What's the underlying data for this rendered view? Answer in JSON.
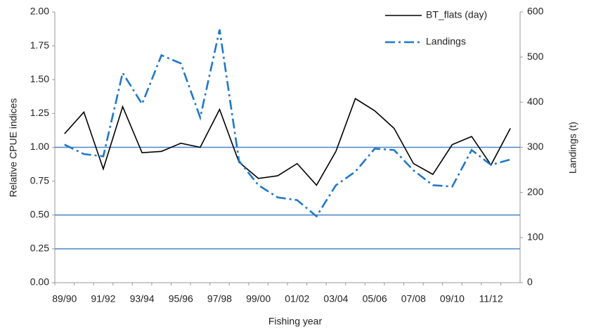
{
  "chart_data": {
    "type": "line",
    "xlabel": "Fishing year",
    "ylabel": "Relative CPUE indices",
    "y2label": "Landings (t)",
    "categories": [
      "89/90",
      null,
      "91/92",
      null,
      "93/94",
      null,
      "95/96",
      null,
      "97/98",
      null,
      "99/00",
      null,
      "01/02",
      null,
      "03/04",
      null,
      "05/06",
      null,
      "07/08",
      null,
      "09/10",
      null,
      "11/12",
      null
    ],
    "series": [
      {
        "name": "BT_flats (day)",
        "color": "#000000",
        "dash": "solid",
        "values": [
          1.1,
          1.26,
          0.84,
          1.3,
          0.96,
          0.97,
          1.03,
          1.0,
          1.28,
          0.89,
          0.77,
          0.79,
          0.88,
          0.72,
          0.97,
          1.36,
          1.27,
          1.14,
          0.88,
          0.8,
          1.02,
          1.08,
          0.87,
          1.14
        ]
      },
      {
        "name": "Landings",
        "color": "#1f78c8",
        "dash": "dashdot",
        "axis": "y2",
        "values": [
          306,
          285,
          280,
          465,
          396,
          504,
          486,
          366,
          561,
          270,
          216,
          189,
          183,
          147,
          216,
          246,
          297,
          294,
          249,
          216,
          213,
          294,
          261,
          273
        ]
      }
    ],
    "ylim": [
      0,
      2
    ],
    "yticks": [
      {
        "value": 0,
        "label": "0.00"
      },
      {
        "value": 0.25,
        "label": "0.25"
      },
      {
        "value": 0.5,
        "label": "0.50"
      },
      {
        "value": 0.75,
        "label": "0.75"
      },
      {
        "value": 1,
        "label": "1.00"
      },
      {
        "value": 1.25,
        "label": "1.25"
      },
      {
        "value": 1.5,
        "label": "1.50"
      },
      {
        "value": 1.75,
        "label": "1.75"
      },
      {
        "value": 2,
        "label": "2.00"
      }
    ],
    "y2lim": [
      0,
      600
    ],
    "y2ticks": [
      0,
      100,
      200,
      300,
      400,
      500,
      600
    ],
    "reference_lines": [
      1.0,
      0.5,
      0.25
    ],
    "reference_color": "#4a86c8",
    "legend": "upper right"
  }
}
